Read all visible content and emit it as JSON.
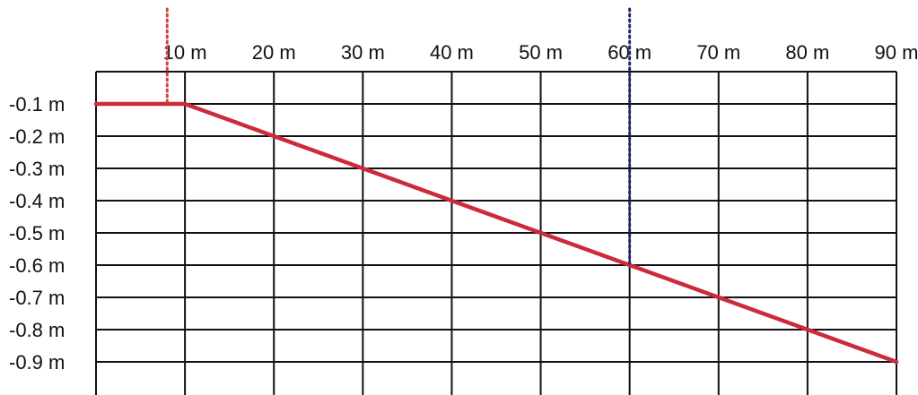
{
  "chart_data": {
    "type": "line",
    "title": "",
    "xlabel": "",
    "ylabel": "",
    "xlim": [
      0,
      90
    ],
    "ylim": [
      -1.0,
      0.0
    ],
    "x_ticks": [
      {
        "value": 10,
        "label": "10 m"
      },
      {
        "value": 20,
        "label": "20 m"
      },
      {
        "value": 30,
        "label": "30 m"
      },
      {
        "value": 40,
        "label": "40 m"
      },
      {
        "value": 50,
        "label": "50 m"
      },
      {
        "value": 60,
        "label": "60 m"
      },
      {
        "value": 70,
        "label": "70 m"
      },
      {
        "value": 80,
        "label": "80 m"
      },
      {
        "value": 90,
        "label": "90 m"
      }
    ],
    "y_ticks": [
      {
        "value": -0.1,
        "label": "-0.1 m"
      },
      {
        "value": -0.2,
        "label": "-0.2 m"
      },
      {
        "value": -0.3,
        "label": "-0.3 m"
      },
      {
        "value": -0.4,
        "label": "-0.4 m"
      },
      {
        "value": -0.5,
        "label": "-0.5 m"
      },
      {
        "value": -0.6,
        "label": "-0.6 m"
      },
      {
        "value": -0.7,
        "label": "-0.7 m"
      },
      {
        "value": -0.8,
        "label": "-0.8 m"
      },
      {
        "value": -0.9,
        "label": "-0.9 m"
      }
    ],
    "grid": true,
    "legend": "none",
    "series": [
      {
        "color": "#cc2a3d",
        "x": [
          0,
          10,
          20,
          30,
          40,
          50,
          60,
          70,
          80,
          90
        ],
        "y": [
          -0.1,
          -0.1,
          -0.2,
          -0.3,
          -0.4,
          -0.5,
          -0.6,
          -0.7,
          -0.8,
          -0.9
        ]
      }
    ],
    "markers": [
      {
        "x": 8,
        "y_top": 0.0,
        "y_bottom": -0.1,
        "color": "#d0433f",
        "style": "dotted"
      },
      {
        "x": 60,
        "y_top": 0.0,
        "y_bottom": -0.6,
        "color": "#1f2a6e",
        "style": "dotted"
      }
    ]
  }
}
